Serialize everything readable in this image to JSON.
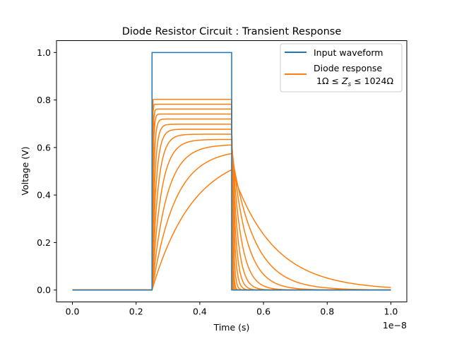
{
  "chart_data": {
    "type": "line",
    "title": "Diode Resistor Circuit : Transient Response",
    "xlabel": "Time (s)",
    "ylabel": "Voltage (V)",
    "x_offset_label": "1e−8",
    "xlim": [
      -0.05,
      1.05
    ],
    "ylim": [
      -0.05,
      1.05
    ],
    "x_ticks": [
      0.0,
      0.2,
      0.4,
      0.6,
      0.8,
      1.0
    ],
    "x_tick_labels": [
      "0.0",
      "0.2",
      "0.4",
      "0.6",
      "0.8",
      "1.0"
    ],
    "y_ticks": [
      0.0,
      0.2,
      0.4,
      0.6,
      0.8,
      1.0
    ],
    "y_tick_labels": [
      "0.0",
      "0.2",
      "0.4",
      "0.6",
      "0.8",
      "1.0"
    ],
    "grid": false,
    "legend_position": "top-right",
    "input_waveform": {
      "name": "Input waveform",
      "color": "#1f77b4",
      "x": [
        0.0,
        0.25,
        0.25,
        0.5,
        0.5,
        1.0
      ],
      "y": [
        0.0,
        0.0,
        1.0,
        1.0,
        0.0,
        0.0
      ]
    },
    "diode_response": {
      "name": "Diode response",
      "name_line2": "1Ω ≤ Z_s ≤ 1024Ω",
      "color": "#ff7f0e",
      "pulse_start": 0.25,
      "pulse_end": 0.5,
      "curves": [
        {
          "plateau": 0.803,
          "tau": 0.0005
        },
        {
          "plateau": 0.782,
          "tau": 0.001
        },
        {
          "plateau": 0.762,
          "tau": 0.002
        },
        {
          "plateau": 0.741,
          "tau": 0.003
        },
        {
          "plateau": 0.72,
          "tau": 0.005
        },
        {
          "plateau": 0.698,
          "tau": 0.008
        },
        {
          "plateau": 0.677,
          "tau": 0.012
        },
        {
          "plateau": 0.656,
          "tau": 0.018
        },
        {
          "plateau": 0.634,
          "tau": 0.028
        },
        {
          "plateau": 0.613,
          "tau": 0.045
        },
        {
          "plateau": 0.593,
          "tau": 0.072
        },
        {
          "plateau": 0.593,
          "tau": 0.13
        }
      ]
    }
  }
}
